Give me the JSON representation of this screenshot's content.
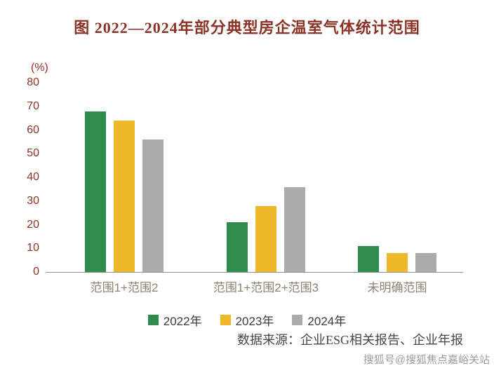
{
  "page": {
    "title": "图  2022—2024年部分典型房企温室气体统计范围",
    "source_note": "数据来源：企业ESG相关报告、企业年报",
    "watermark": "搜狐号@搜狐焦点嘉峪关站"
  },
  "colors": {
    "title_text": "#8b3226",
    "axis_tick_text": "#8b3226",
    "category_text": "#8d8270",
    "legend_text": "#3f3a33",
    "series_2022": "#2f8c4c",
    "series_2023": "#edb829",
    "series_2024": "#ababab"
  },
  "chart_data": {
    "type": "bar",
    "title": "2022—2024年部分典型房企温室气体统计范围",
    "unit_label": "(%)",
    "categories": [
      "范围1+范围2",
      "范围1+范围2+范围3",
      "未明确范围"
    ],
    "series": [
      {
        "name": "2022年",
        "color": "#2f8c4c",
        "values": [
          68,
          21,
          11
        ]
      },
      {
        "name": "2023年",
        "color": "#edb829",
        "values": [
          64,
          28,
          8
        ]
      },
      {
        "name": "2024年",
        "color": "#ababab",
        "values": [
          56,
          36,
          8
        ]
      }
    ],
    "ylim": [
      0,
      80
    ],
    "yticks": [
      0,
      10,
      20,
      30,
      40,
      50,
      60,
      70,
      80
    ],
    "grid": false,
    "legend_position": "bottom",
    "source": "数据来源：企业ESG相关报告、企业年报"
  }
}
